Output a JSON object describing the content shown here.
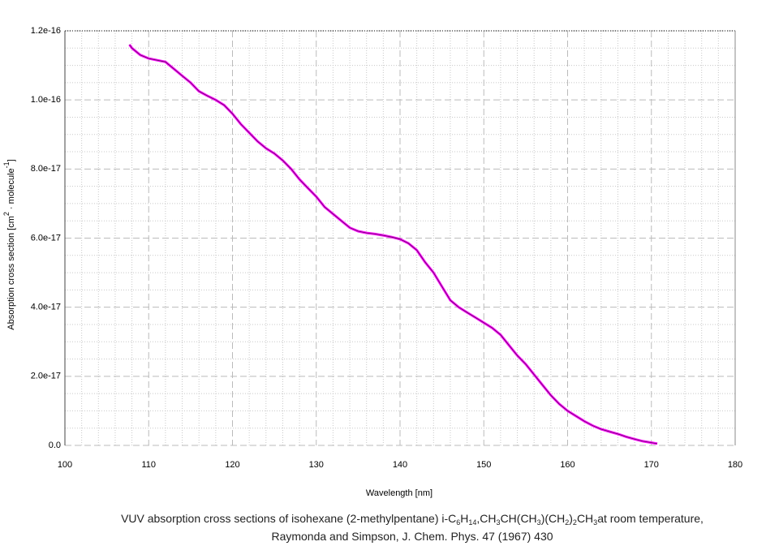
{
  "chart_data": {
    "type": "line",
    "xlabel": "Wavelength [nm]",
    "ylabel": [
      "Absorption cross section [cm",
      "2",
      " · molecule",
      "-1",
      "]"
    ],
    "caption": [
      [
        "VUV absorption cross sections of isohexane (2-methylpentane) i-C",
        "6",
        "H",
        "14",
        ",CH",
        "3",
        "CH(CH",
        "3",
        ")(CH",
        "2",
        ")",
        "2",
        "CH",
        "3",
        "at room temperature,"
      ],
      [
        "Raymonda and Simpson, J. Chem. Phys. 47 (1967) 430"
      ]
    ],
    "xlim": [
      100,
      180
    ],
    "xticks": [
      100,
      110,
      120,
      130,
      140,
      150,
      160,
      170,
      180
    ],
    "ylim": [
      0,
      1.2e-16
    ],
    "yticks": [
      {
        "value": 0,
        "label": "0.0"
      },
      {
        "value": 2e-17,
        "label": "2.0e-17"
      },
      {
        "value": 4e-17,
        "label": "4.0e-17"
      },
      {
        "value": 6e-17,
        "label": "6.0e-17"
      },
      {
        "value": 8e-17,
        "label": "8.0e-17"
      },
      {
        "value": 1e-16,
        "label": "1.0e-16"
      },
      {
        "value": 1.2e-16,
        "label": "1.2e-16"
      }
    ],
    "grid": true,
    "series": [
      {
        "color": "#ff00ff",
        "x": [
          107.7,
          108,
          109,
          110,
          111,
          112,
          113,
          114,
          115,
          116,
          117,
          118,
          119,
          120,
          121,
          122,
          123,
          124,
          125,
          126,
          127,
          128,
          129,
          130,
          131,
          132,
          133,
          134,
          135,
          136,
          137,
          138,
          139,
          140,
          141,
          142,
          143,
          144,
          145,
          146,
          147,
          148,
          149,
          150,
          151,
          152,
          153,
          154,
          155,
          156,
          157,
          158,
          159,
          160,
          161,
          162,
          163,
          164,
          165,
          166,
          167,
          168,
          169,
          170,
          170.7
        ],
        "values": [
          1.16e-16,
          1.15e-16,
          1.13e-16,
          1.12e-16,
          1.115e-16,
          1.11e-16,
          1.09e-16,
          1.07e-16,
          1.05e-16,
          1.025e-16,
          1.012e-16,
          1e-16,
          9.85e-17,
          9.6e-17,
          9.3e-17,
          9.05e-17,
          8.8e-17,
          8.6e-17,
          8.45e-17,
          8.25e-17,
          8e-17,
          7.7e-17,
          7.45e-17,
          7.2e-17,
          6.9e-17,
          6.7e-17,
          6.5e-17,
          6.3e-17,
          6.2e-17,
          6.15e-17,
          6.12e-17,
          6.08e-17,
          6.03e-17,
          5.97e-17,
          5.85e-17,
          5.65e-17,
          5.3e-17,
          5e-17,
          4.6e-17,
          4.2e-17,
          4e-17,
          3.85e-17,
          3.7e-17,
          3.55e-17,
          3.4e-17,
          3.2e-17,
          2.9e-17,
          2.6e-17,
          2.35e-17,
          2.05e-17,
          1.75e-17,
          1.45e-17,
          1.2e-17,
          1e-17,
          8.5e-18,
          7e-18,
          5.7e-18,
          4.7e-18,
          4e-18,
          3.3e-18,
          2.5e-18,
          1.8e-18,
          1.2e-18,
          8e-19,
          5e-19
        ]
      }
    ]
  }
}
